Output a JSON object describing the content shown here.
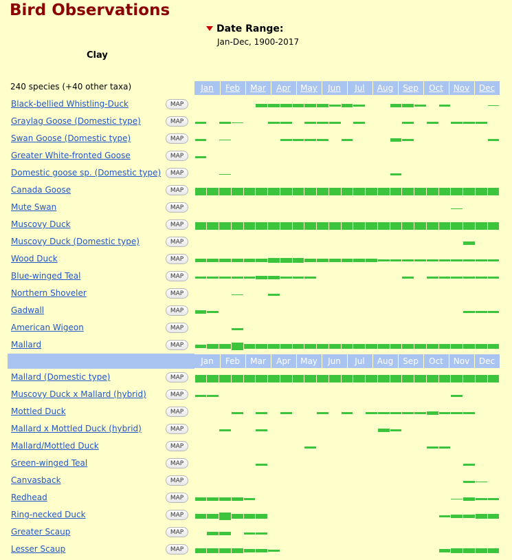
{
  "header": {
    "title": "Bird Observations",
    "date_range_label": "Date Range:",
    "date_range_value": "Jan-Dec, 1900-2017",
    "county": "Clay",
    "species_count": "240 species (+40 other taxa)"
  },
  "months": [
    "Jan",
    "Feb",
    "Mar",
    "Apr",
    "May",
    "Jun",
    "Jul",
    "Aug",
    "Sep",
    "Oct",
    "Nov",
    "Dec"
  ],
  "map_label": "MAP",
  "colors": {
    "bar": "#3cc43c",
    "header": "#aac4f2",
    "link": "#2255cc",
    "title": "#8b0000",
    "background": "#ffffcc"
  },
  "species_group1": [
    {
      "name": "Black-bellied Whistling-Duck",
      "bars": [
        [
          5,
          3
        ],
        [
          6,
          3
        ],
        [
          7,
          3
        ],
        [
          8,
          3
        ],
        [
          9,
          3
        ],
        [
          10,
          3
        ],
        [
          11,
          2
        ],
        [
          12,
          3
        ],
        [
          13,
          2
        ],
        [
          16,
          3
        ],
        [
          17,
          3
        ],
        [
          18,
          2
        ],
        [
          20,
          2
        ],
        [
          24,
          1
        ]
      ]
    },
    {
      "name": "Graylag Goose (Domestic type)",
      "bars": [
        [
          0,
          2
        ],
        [
          2,
          2
        ],
        [
          3,
          1
        ],
        [
          6,
          2
        ],
        [
          7,
          2
        ],
        [
          9,
          2
        ],
        [
          10,
          2
        ],
        [
          11,
          2
        ],
        [
          13,
          2
        ],
        [
          17,
          2
        ],
        [
          19,
          2
        ],
        [
          21,
          2
        ],
        [
          22,
          2
        ],
        [
          23,
          2
        ]
      ]
    },
    {
      "name": "Swan Goose (Domestic type)",
      "bars": [
        [
          0,
          2
        ],
        [
          2,
          1
        ],
        [
          7,
          2
        ],
        [
          8,
          2
        ],
        [
          9,
          2
        ],
        [
          10,
          2
        ],
        [
          12,
          2
        ],
        [
          16,
          3
        ],
        [
          17,
          2
        ],
        [
          24,
          2
        ]
      ]
    },
    {
      "name": "Greater White-fronted Goose",
      "bars": [
        [
          0,
          2
        ]
      ]
    },
    {
      "name": "Domestic goose sp. (Domestic type)",
      "bars": [
        [
          2,
          1
        ],
        [
          16,
          2
        ]
      ]
    },
    {
      "name": "Canada Goose",
      "bars": [
        [
          0,
          5
        ],
        [
          1,
          5
        ],
        [
          2,
          5
        ],
        [
          3,
          5
        ],
        [
          4,
          5
        ],
        [
          5,
          5
        ],
        [
          6,
          5
        ],
        [
          7,
          5
        ],
        [
          8,
          5
        ],
        [
          9,
          5
        ],
        [
          10,
          5
        ],
        [
          11,
          5
        ],
        [
          12,
          5
        ],
        [
          13,
          5
        ],
        [
          14,
          5
        ],
        [
          15,
          5
        ],
        [
          16,
          5
        ],
        [
          17,
          5
        ],
        [
          18,
          5
        ],
        [
          19,
          5
        ],
        [
          20,
          5
        ],
        [
          21,
          5
        ],
        [
          22,
          5
        ],
        [
          23,
          5
        ],
        [
          24,
          5
        ]
      ]
    },
    {
      "name": "Mute Swan",
      "bars": [
        [
          21,
          1
        ]
      ]
    },
    {
      "name": "Muscovy Duck",
      "bars": [
        [
          0,
          5
        ],
        [
          1,
          5
        ],
        [
          2,
          5
        ],
        [
          3,
          5
        ],
        [
          4,
          5
        ],
        [
          5,
          5
        ],
        [
          6,
          5
        ],
        [
          7,
          5
        ],
        [
          8,
          5
        ],
        [
          9,
          5
        ],
        [
          10,
          5
        ],
        [
          11,
          5
        ],
        [
          12,
          5
        ],
        [
          13,
          5
        ],
        [
          14,
          5
        ],
        [
          15,
          5
        ],
        [
          16,
          5
        ],
        [
          17,
          5
        ],
        [
          18,
          5
        ],
        [
          19,
          5
        ],
        [
          20,
          5
        ],
        [
          21,
          5
        ],
        [
          22,
          5
        ],
        [
          23,
          5
        ],
        [
          24,
          5
        ]
      ]
    },
    {
      "name": "Muscovy Duck (Domestic type)",
      "bars": [
        [
          22,
          3
        ]
      ]
    },
    {
      "name": "Wood Duck",
      "bars": [
        [
          0,
          3
        ],
        [
          1,
          3
        ],
        [
          2,
          3
        ],
        [
          3,
          3
        ],
        [
          4,
          3
        ],
        [
          5,
          3
        ],
        [
          6,
          4
        ],
        [
          7,
          4
        ],
        [
          8,
          4
        ],
        [
          9,
          3
        ],
        [
          10,
          3
        ],
        [
          11,
          3
        ],
        [
          12,
          3
        ],
        [
          13,
          3
        ],
        [
          14,
          3
        ],
        [
          15,
          2
        ],
        [
          16,
          2
        ],
        [
          17,
          2
        ],
        [
          18,
          2
        ],
        [
          19,
          2
        ],
        [
          20,
          2
        ],
        [
          21,
          2
        ],
        [
          22,
          2
        ],
        [
          23,
          2
        ],
        [
          24,
          2
        ]
      ]
    },
    {
      "name": "Blue-winged Teal",
      "bars": [
        [
          0,
          2
        ],
        [
          1,
          2
        ],
        [
          2,
          2
        ],
        [
          3,
          2
        ],
        [
          4,
          2
        ],
        [
          5,
          3
        ],
        [
          6,
          3
        ],
        [
          7,
          2
        ],
        [
          8,
          2
        ],
        [
          9,
          2
        ],
        [
          17,
          2
        ],
        [
          19,
          2
        ],
        [
          20,
          2
        ],
        [
          21,
          2
        ],
        [
          22,
          2
        ],
        [
          23,
          2
        ],
        [
          24,
          2
        ]
      ]
    },
    {
      "name": "Northern Shoveler",
      "bars": [
        [
          3,
          1
        ],
        [
          6,
          2
        ]
      ]
    },
    {
      "name": "Gadwall",
      "bars": [
        [
          0,
          3
        ],
        [
          1,
          2
        ],
        [
          22,
          2
        ],
        [
          23,
          2
        ],
        [
          24,
          2
        ]
      ]
    },
    {
      "name": "American Wigeon",
      "bars": [
        [
          3,
          2
        ]
      ]
    },
    {
      "name": "Mallard",
      "bars": [
        [
          0,
          3
        ],
        [
          1,
          4
        ],
        [
          2,
          4
        ],
        [
          3,
          5
        ],
        [
          4,
          4
        ],
        [
          5,
          4
        ],
        [
          6,
          4
        ],
        [
          7,
          4
        ],
        [
          8,
          4
        ],
        [
          9,
          4
        ],
        [
          10,
          4
        ],
        [
          11,
          4
        ],
        [
          12,
          4
        ],
        [
          13,
          4
        ],
        [
          14,
          4
        ],
        [
          15,
          4
        ],
        [
          16,
          4
        ],
        [
          17,
          4
        ],
        [
          18,
          4
        ],
        [
          19,
          4
        ],
        [
          20,
          4
        ],
        [
          21,
          4
        ],
        [
          22,
          4
        ],
        [
          23,
          4
        ],
        [
          24,
          4
        ]
      ]
    }
  ],
  "species_group2": [
    {
      "name": "Mallard (Domestic type)",
      "bars": [
        [
          0,
          5
        ],
        [
          1,
          5
        ],
        [
          2,
          5
        ],
        [
          3,
          5
        ],
        [
          4,
          5
        ],
        [
          5,
          5
        ],
        [
          6,
          5
        ],
        [
          7,
          5
        ],
        [
          8,
          5
        ],
        [
          9,
          5
        ],
        [
          10,
          5
        ],
        [
          11,
          5
        ],
        [
          12,
          5
        ],
        [
          13,
          5
        ],
        [
          14,
          5
        ],
        [
          15,
          5
        ],
        [
          16,
          5
        ],
        [
          17,
          5
        ],
        [
          18,
          5
        ],
        [
          19,
          5
        ],
        [
          20,
          5
        ],
        [
          21,
          5
        ],
        [
          22,
          5
        ],
        [
          23,
          5
        ],
        [
          24,
          5
        ]
      ]
    },
    {
      "name": "Muscovy Duck x Mallard (hybrid)",
      "bars": [
        [
          0,
          2
        ],
        [
          1,
          2
        ],
        [
          21,
          2
        ]
      ]
    },
    {
      "name": "Mottled Duck",
      "bars": [
        [
          3,
          2
        ],
        [
          5,
          2
        ],
        [
          7,
          2
        ],
        [
          10,
          2
        ],
        [
          12,
          2
        ],
        [
          14,
          2
        ],
        [
          15,
          2
        ],
        [
          16,
          2
        ],
        [
          17,
          2
        ],
        [
          18,
          2
        ],
        [
          19,
          3
        ],
        [
          20,
          2
        ],
        [
          21,
          2
        ],
        [
          22,
          2
        ]
      ]
    },
    {
      "name": "Mallard x Mottled Duck (hybrid)",
      "bars": [
        [
          2,
          2
        ],
        [
          5,
          2
        ],
        [
          15,
          3
        ],
        [
          16,
          2
        ]
      ]
    },
    {
      "name": "Mallard/Mottled Duck",
      "bars": [
        [
          9,
          2
        ],
        [
          19,
          2
        ],
        [
          20,
          2
        ]
      ]
    },
    {
      "name": "Green-winged Teal",
      "bars": [
        [
          5,
          2
        ],
        [
          22,
          2
        ]
      ]
    },
    {
      "name": "Canvasback",
      "bars": [
        [
          22,
          2
        ],
        [
          23,
          1
        ]
      ]
    },
    {
      "name": "Redhead",
      "bars": [
        [
          0,
          3
        ],
        [
          1,
          3
        ],
        [
          2,
          3
        ],
        [
          3,
          3
        ],
        [
          4,
          2
        ],
        [
          21,
          1
        ],
        [
          22,
          3
        ],
        [
          23,
          2
        ],
        [
          24,
          2
        ]
      ]
    },
    {
      "name": "Ring-necked Duck",
      "bars": [
        [
          0,
          4
        ],
        [
          1,
          4
        ],
        [
          2,
          5
        ],
        [
          3,
          4
        ],
        [
          4,
          4
        ],
        [
          5,
          4
        ],
        [
          20,
          2
        ],
        [
          21,
          3
        ],
        [
          22,
          3
        ],
        [
          23,
          4
        ],
        [
          24,
          4
        ]
      ]
    },
    {
      "name": "Greater Scaup",
      "bars": [
        [
          1,
          3
        ],
        [
          2,
          3
        ],
        [
          4,
          2
        ],
        [
          5,
          2
        ]
      ]
    },
    {
      "name": "Lesser Scaup",
      "bars": [
        [
          0,
          4
        ],
        [
          1,
          4
        ],
        [
          2,
          4
        ],
        [
          3,
          4
        ],
        [
          4,
          3
        ],
        [
          5,
          3
        ],
        [
          6,
          2
        ],
        [
          20,
          3
        ],
        [
          21,
          4
        ],
        [
          22,
          4
        ],
        [
          23,
          4
        ],
        [
          24,
          4
        ]
      ]
    }
  ]
}
